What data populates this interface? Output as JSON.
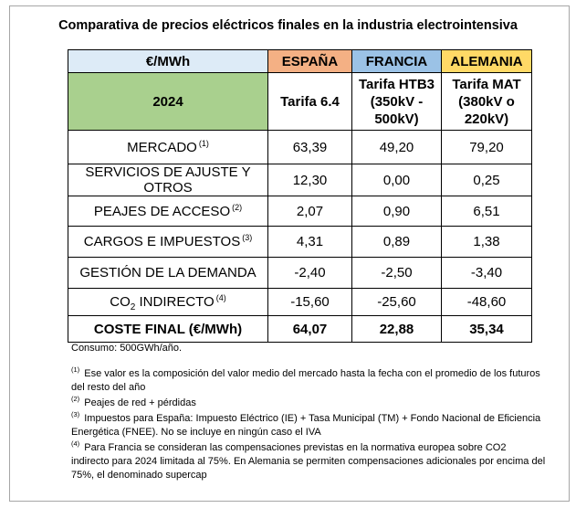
{
  "title": "Comparativa de precios eléctricos finales en la industria electrointensiva",
  "colors": {
    "unit_header": "#ddebf7",
    "spain": "#f4b084",
    "france": "#9bc2e6",
    "germany": "#ffd966",
    "year": "#a9d08e"
  },
  "table": {
    "unit": "€/MWh",
    "countries": [
      "ESPAÑA",
      "FRANCIA",
      "ALEMANIA"
    ],
    "year": "2024",
    "tariffs": [
      "Tarifa 6.4",
      "Tarifa HTB3 (350kV - 500kV)",
      "Tarifa MAT (380kV o 220kV)"
    ],
    "rows": [
      {
        "label": "MERCADO",
        "note": "(1)",
        "values": [
          "63,39",
          "49,20",
          "79,20"
        ]
      },
      {
        "label": "SERVICIOS DE AJUSTE Y OTROS",
        "note": "",
        "values": [
          "12,30",
          "0,00",
          "0,25"
        ]
      },
      {
        "label": "PEAJES DE ACCESO",
        "note": "(2)",
        "values": [
          "2,07",
          "0,90",
          "6,51"
        ]
      },
      {
        "label": "CARGOS E IMPUESTOS",
        "note": "(3)",
        "values": [
          "4,31",
          "0,89",
          "1,38"
        ]
      },
      {
        "label": "GESTIÓN DE LA DEMANDA",
        "note": "",
        "values": [
          "-2,40",
          "-2,50",
          "-3,40"
        ]
      },
      {
        "label_prefix": "CO",
        "label_sub": "2",
        "label_suffix": " INDIRECTO",
        "note": "(4)",
        "values": [
          "-15,60",
          "-25,60",
          "-48,60"
        ]
      }
    ],
    "total": {
      "label": "COSTE FINAL (€/MWh)",
      "values": [
        "64,07",
        "22,88",
        "35,34"
      ]
    }
  },
  "notes": {
    "consumo": "Consumo: 500GWh/año.",
    "items": [
      {
        "mark": "(1)",
        "text": " Ese valor es la composición del valor medio del mercado hasta la fecha con el promedio de los futuros del resto del año"
      },
      {
        "mark": "(2)",
        "text": " Peajes de red + pérdidas"
      },
      {
        "mark": "(3)",
        "text": " Impuestos para España:  Impuesto Eléctrico (IE) + Tasa  Municipal (TM) + Fondo Nacional de Eficiencia Energética (FNEE).  No se incluye en ningún caso el IVA"
      },
      {
        "mark": "(4)",
        "text": " Para Francia se consideran las compensaciones previstas en la normativa europea sobre CO2 indirecto para 2024 limitada al 75%. En Alemania se permiten compensaciones adicionales por encima del 75%, el denominado  supercap"
      }
    ]
  }
}
